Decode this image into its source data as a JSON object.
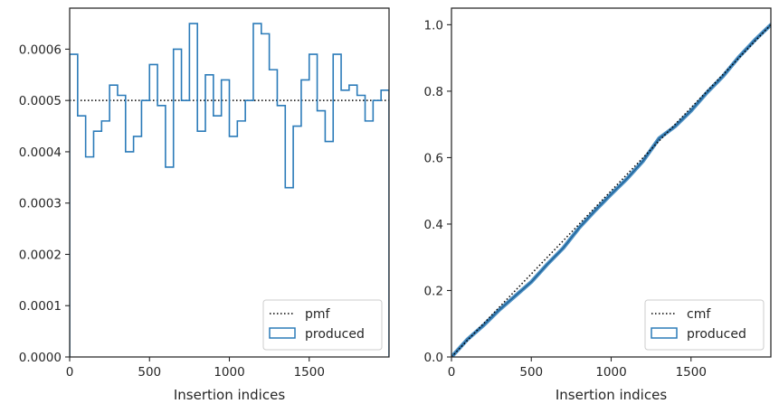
{
  "chart_data": [
    {
      "type": "histogram-step",
      "xlabel": "Insertion indices",
      "ylabel": "",
      "xlim": [
        0,
        2000
      ],
      "ylim": [
        0,
        0.00068
      ],
      "xticks": [
        0,
        500,
        1000,
        1500
      ],
      "xtick_labels": [
        "0",
        "500",
        "1000",
        "1500"
      ],
      "yticks": [
        0,
        0.0001,
        0.0002,
        0.0003,
        0.0004,
        0.0005,
        0.0006
      ],
      "ytick_labels": [
        "0.0000",
        "0.0001",
        "0.0002",
        "0.0003",
        "0.0004",
        "0.0005",
        "0.0006"
      ],
      "grid": false,
      "legend_position": "bottom-right",
      "bin_edges": [
        0,
        50,
        100,
        150,
        200,
        250,
        300,
        350,
        400,
        450,
        500,
        550,
        600,
        650,
        700,
        750,
        800,
        850,
        900,
        950,
        1000,
        1050,
        1100,
        1150,
        1200,
        1250,
        1300,
        1350,
        1400,
        1450,
        1500,
        1550,
        1600,
        1650,
        1700,
        1750,
        1800,
        1850,
        1900,
        1950,
        2000
      ],
      "series": [
        {
          "name": "pmf",
          "style": "dotted",
          "color": "#000000",
          "values": [
            0.0005,
            0.0005
          ]
        },
        {
          "name": "produced",
          "style": "step",
          "color": "#2b7bb9",
          "values": [
            0.00059,
            0.00047,
            0.00039,
            0.00044,
            0.00046,
            0.00053,
            0.00051,
            0.0004,
            0.00043,
            0.0005,
            0.00057,
            0.00049,
            0.00037,
            0.0006,
            0.0005,
            0.00065,
            0.00044,
            0.00055,
            0.00047,
            0.00054,
            0.00043,
            0.00046,
            0.0005,
            0.00065,
            0.00063,
            0.00056,
            0.00049,
            0.00033,
            0.00045,
            0.00054,
            0.00059,
            0.00048,
            0.00042,
            0.00059,
            0.00052,
            0.00053,
            0.00051,
            0.00046,
            0.0005,
            0.00052
          ]
        }
      ]
    },
    {
      "type": "line",
      "xlabel": "Insertion indices",
      "ylabel": "",
      "xlim": [
        0,
        2000
      ],
      "ylim": [
        0,
        1.05
      ],
      "xticks": [
        0,
        500,
        1000,
        1500
      ],
      "xtick_labels": [
        "0",
        "500",
        "1000",
        "1500"
      ],
      "yticks": [
        0,
        0.2,
        0.4,
        0.6,
        0.8,
        1.0
      ],
      "ytick_labels": [
        "0.0",
        "0.2",
        "0.4",
        "0.6",
        "0.8",
        "1.0"
      ],
      "grid": false,
      "legend_position": "bottom-right",
      "series": [
        {
          "name": "cmf",
          "style": "dotted",
          "color": "#000000",
          "x": [
            0,
            2000
          ],
          "y": [
            0,
            1.0
          ]
        },
        {
          "name": "produced",
          "style": "band",
          "color": "#2b7bb9",
          "x": [
            0,
            100,
            200,
            300,
            400,
            500,
            600,
            700,
            800,
            900,
            1000,
            1100,
            1200,
            1300,
            1400,
            1500,
            1600,
            1700,
            1800,
            1900,
            2000
          ],
          "y": [
            0,
            0.053,
            0.095,
            0.142,
            0.184,
            0.226,
            0.279,
            0.328,
            0.389,
            0.441,
            0.49,
            0.537,
            0.59,
            0.658,
            0.694,
            0.741,
            0.796,
            0.845,
            0.903,
            0.954,
            1.0
          ]
        }
      ]
    }
  ]
}
